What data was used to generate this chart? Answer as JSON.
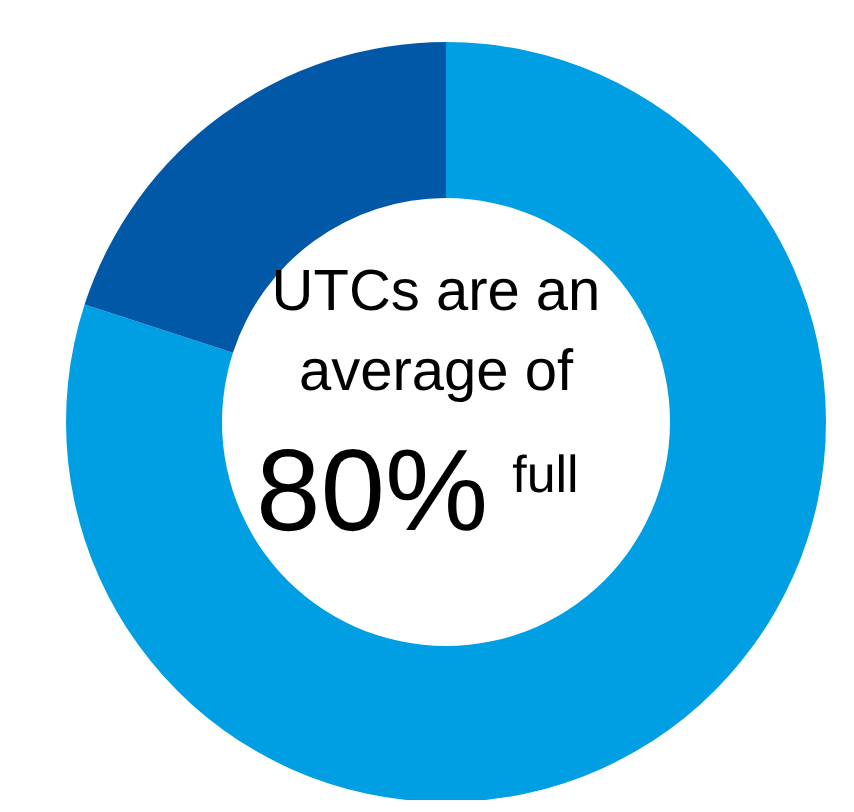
{
  "chart_data": {
    "type": "donut",
    "categories": [
      null,
      null
    ],
    "values": [
      80,
      20
    ],
    "colors": [
      "#009fe3",
      "#0058a6"
    ],
    "value_labels": [
      "80%",
      null
    ],
    "annotations": [
      "UTCs are an average of",
      "full"
    ]
  }
}
